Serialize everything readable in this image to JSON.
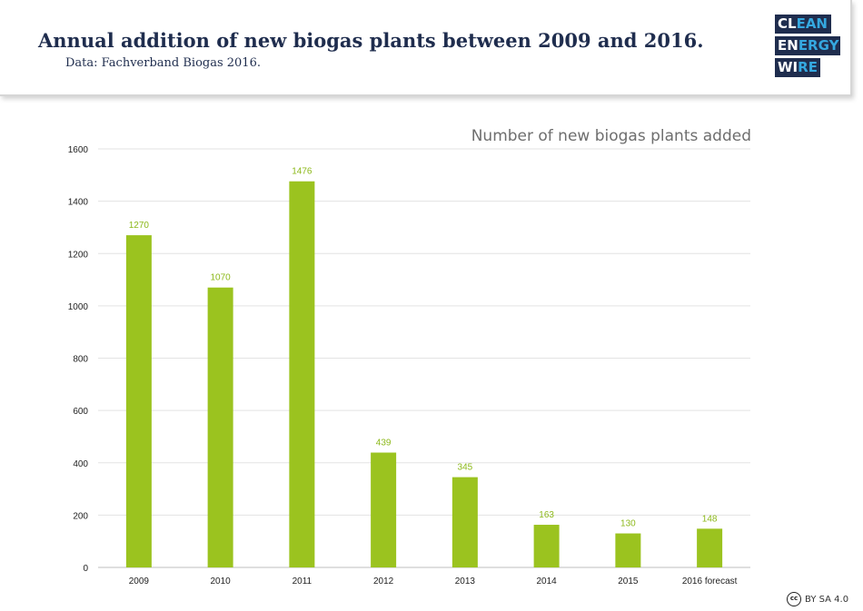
{
  "header": {
    "title": "Annual addition of new biogas plants between 2009 and 2016.",
    "subtitle": "Data: Fachverband Biogas 2016."
  },
  "logo": {
    "line1a": "CL",
    "line1b": "EAN",
    "line2a": "EN",
    "line2b": "ERGY",
    "line3a": "WI",
    "line3b": "RE",
    "bg_color": "#1f2d4e"
  },
  "license": {
    "icon": "cc-icon",
    "icon_text": "cc",
    "text": "BY SA 4.0"
  },
  "chart_data": {
    "type": "bar",
    "title": "Number of new biogas plants added",
    "categories": [
      "2009",
      "2010",
      "2011",
      "2012",
      "2013",
      "2014",
      "2015",
      "2016 forecast"
    ],
    "values": [
      1270,
      1070,
      1476,
      439,
      345,
      163,
      130,
      148
    ],
    "data_labels": [
      "1270",
      "1070",
      "1476",
      "439",
      "345",
      "163",
      "130",
      "148"
    ],
    "ylim": [
      0,
      1600
    ],
    "yticks": [
      "0",
      "200",
      "400",
      "600",
      "800",
      "1000",
      "1200",
      "1400",
      "1600"
    ],
    "xlabel": "",
    "ylabel": "",
    "grid": true,
    "bar_color": "#9bc31f",
    "label_color": "#8cb81a"
  }
}
